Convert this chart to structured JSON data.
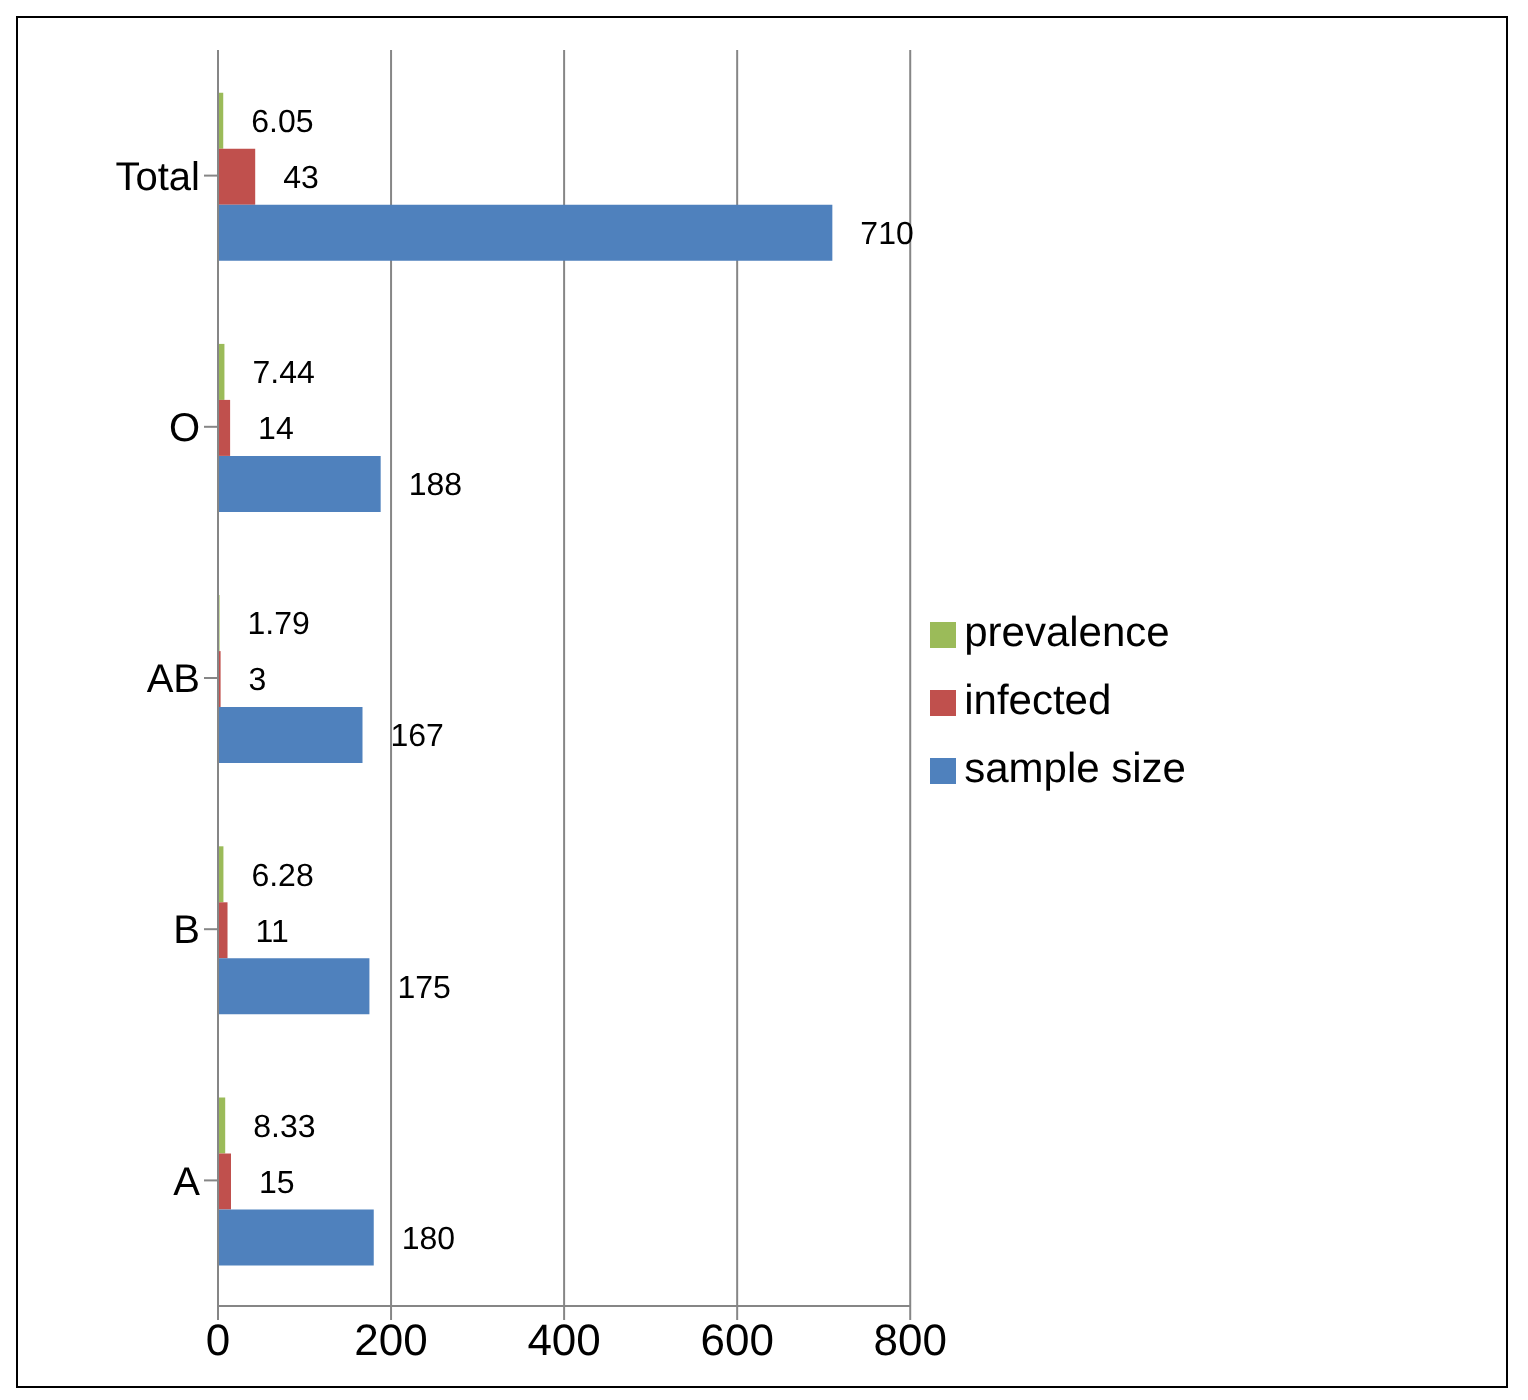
{
  "chart_data": {
    "type": "bar",
    "orientation": "horizontal",
    "categories": [
      "Total",
      "O",
      "AB",
      "B",
      "A"
    ],
    "series": [
      {
        "name": "prevalence",
        "color": "#9bbb59",
        "values": [
          6.05,
          7.44,
          1.79,
          6.28,
          8.33
        ]
      },
      {
        "name": "infected",
        "color": "#c0504d",
        "values": [
          43,
          14,
          3,
          11,
          15
        ]
      },
      {
        "name": "sample size",
        "color": "#4f81bd",
        "values": [
          710,
          188,
          167,
          175,
          180
        ]
      }
    ],
    "xlim": [
      0,
      800
    ],
    "xticks": [
      0,
      200,
      400,
      600,
      800
    ],
    "grid": "x",
    "legend": "right",
    "data_labels": true
  }
}
